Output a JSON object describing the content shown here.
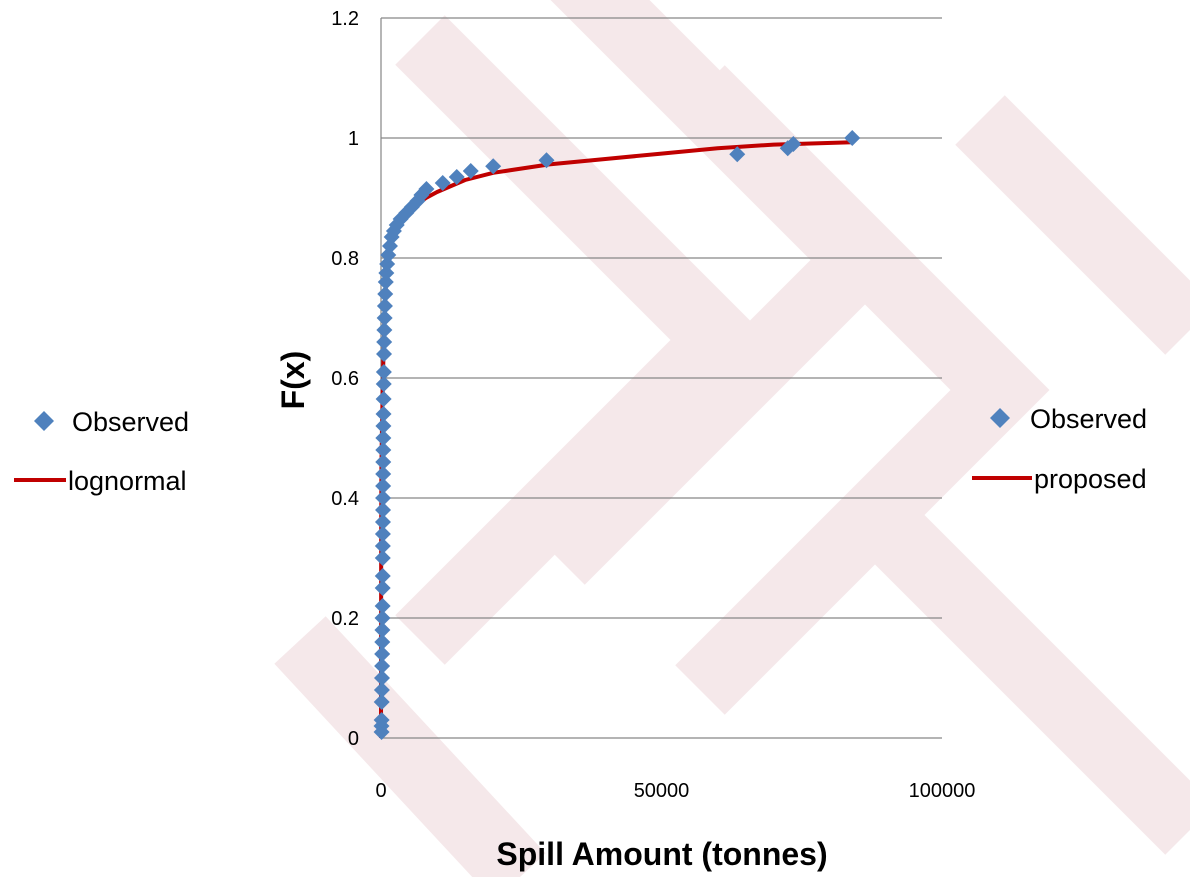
{
  "chart_data": {
    "type": "scatter",
    "xlabel": "Spill Amount (tonnes)",
    "ylabel": "F(x)",
    "xlim": [
      0,
      100000
    ],
    "ylim": [
      0,
      1.2
    ],
    "x_ticks": [
      "0",
      "50000",
      "100000"
    ],
    "y_ticks": [
      "0",
      "0.2",
      "0.4",
      "0.6",
      "0.8",
      "1",
      "1.2"
    ],
    "grid": "horizontal",
    "colors": {
      "observed": "#4f81bd",
      "fit": "#c00000",
      "gridline": "#868686",
      "watermark": "#f3e3e5"
    },
    "legends": [
      {
        "placement": "left",
        "items": [
          {
            "label": "Observed",
            "marker": "diamond"
          },
          {
            "label": "lognormal",
            "marker": "line"
          }
        ]
      },
      {
        "placement": "right",
        "items": [
          {
            "label": "Observed",
            "marker": "diamond"
          },
          {
            "label": "proposed",
            "marker": "line"
          }
        ]
      }
    ],
    "series": [
      {
        "name": "Observed",
        "kind": "points",
        "points": [
          [
            100,
            0.01
          ],
          [
            90,
            0.02
          ],
          [
            110,
            0.03
          ],
          [
            130,
            0.06
          ],
          [
            160,
            0.08
          ],
          [
            180,
            0.1
          ],
          [
            200,
            0.12
          ],
          [
            210,
            0.14
          ],
          [
            230,
            0.16
          ],
          [
            250,
            0.18
          ],
          [
            270,
            0.2
          ],
          [
            290,
            0.22
          ],
          [
            300,
            0.25
          ],
          [
            310,
            0.27
          ],
          [
            320,
            0.3
          ],
          [
            330,
            0.32
          ],
          [
            340,
            0.34
          ],
          [
            350,
            0.36
          ],
          [
            360,
            0.38
          ],
          [
            370,
            0.4
          ],
          [
            380,
            0.42
          ],
          [
            390,
            0.44
          ],
          [
            400,
            0.46
          ],
          [
            410,
            0.48
          ],
          [
            420,
            0.5
          ],
          [
            430,
            0.52
          ],
          [
            450,
            0.54
          ],
          [
            470,
            0.565
          ],
          [
            490,
            0.59
          ],
          [
            510,
            0.61
          ],
          [
            540,
            0.64
          ],
          [
            570,
            0.66
          ],
          [
            600,
            0.68
          ],
          [
            650,
            0.7
          ],
          [
            700,
            0.72
          ],
          [
            760,
            0.74
          ],
          [
            850,
            0.76
          ],
          [
            950,
            0.775
          ],
          [
            1100,
            0.79
          ],
          [
            1300,
            0.805
          ],
          [
            1600,
            0.82
          ],
          [
            1900,
            0.835
          ],
          [
            2300,
            0.845
          ],
          [
            2800,
            0.855
          ],
          [
            3500,
            0.865
          ],
          [
            4500,
            0.875
          ],
          [
            5500,
            0.885
          ],
          [
            6500,
            0.895
          ],
          [
            7200,
            0.905
          ],
          [
            8100,
            0.915
          ],
          [
            11000,
            0.925
          ],
          [
            13500,
            0.935
          ],
          [
            16000,
            0.945
          ],
          [
            20000,
            0.953
          ],
          [
            29500,
            0.963
          ],
          [
            63500,
            0.973
          ],
          [
            72500,
            0.983
          ],
          [
            73500,
            0.99
          ],
          [
            84000,
            1.0
          ]
        ]
      },
      {
        "name": "proposed",
        "kind": "line",
        "points": [
          [
            0,
            0.0
          ],
          [
            40,
            0.35
          ],
          [
            80,
            0.45
          ],
          [
            150,
            0.5
          ],
          [
            250,
            0.55
          ],
          [
            400,
            0.62
          ],
          [
            600,
            0.7
          ],
          [
            900,
            0.76
          ],
          [
            1300,
            0.8
          ],
          [
            2000,
            0.83
          ],
          [
            3000,
            0.85
          ],
          [
            4000,
            0.865
          ],
          [
            5000,
            0.878
          ],
          [
            6500,
            0.89
          ],
          [
            8000,
            0.9
          ],
          [
            10000,
            0.91
          ],
          [
            15000,
            0.93
          ],
          [
            20000,
            0.942
          ],
          [
            30000,
            0.956
          ],
          [
            40000,
            0.965
          ],
          [
            50000,
            0.974
          ],
          [
            60000,
            0.983
          ],
          [
            70000,
            0.989
          ],
          [
            84000,
            0.993
          ]
        ]
      }
    ]
  }
}
